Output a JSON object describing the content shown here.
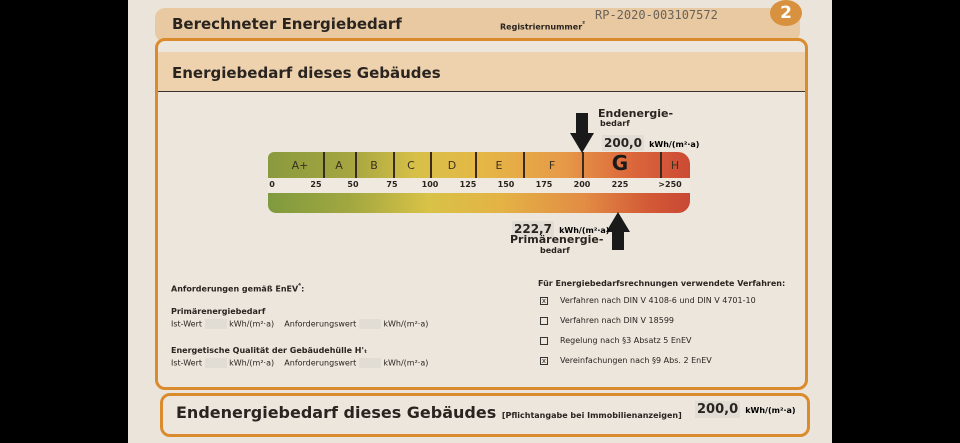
{
  "header": {
    "title": "Berechneter Energiebedarf",
    "registry_label": "Registriernummer",
    "registry_superscript": "²",
    "registry_number": "RP-2020-003107572",
    "page_number": "2"
  },
  "section": {
    "title": "Energiebedarf dieses Gebäudes"
  },
  "scale": {
    "classes": [
      "A+",
      "A",
      "B",
      "C",
      "D",
      "E",
      "F",
      "G",
      "H"
    ],
    "highlighted_class": "G",
    "ticks": [
      "0",
      "25",
      "50",
      "75",
      "100",
      "125",
      "150",
      "175",
      "200",
      "225",
      ">250"
    ]
  },
  "endenergie": {
    "label_line1": "Endenergie-",
    "label_line2": "bedarf",
    "value": "200,0",
    "unit": "kWh/(m²·a)"
  },
  "primaerenergie": {
    "label_line1": "Primärenergie-",
    "label_line2": "bedarf",
    "value": "222,7",
    "unit": "kWh/(m²·a)"
  },
  "requirements": {
    "heading": "Anforderungen gemäß EnEV",
    "heading_sup": "⁴",
    "primary_title": "Primärenergiebedarf",
    "envelope_title": "Energetische Qualität der Gebäudehülle H'ₜ",
    "ist_label": "Ist-Wert",
    "unit": "kWh/(m²·a)",
    "req_label": "Anforderungswert"
  },
  "methods": {
    "heading": "Für Energiebedarfsrechnungen verwendete Verfahren:",
    "items": [
      {
        "label": "Verfahren nach DIN V 4108-6 und DIN V 4701-10",
        "checked": true,
        "mark": "x"
      },
      {
        "label": "Verfahren nach DIN V 18599",
        "checked": false,
        "mark": ""
      },
      {
        "label": "Regelung nach §3 Absatz 5 EnEV",
        "checked": false,
        "mark": ""
      },
      {
        "label": "Vereinfachungen nach §9 Abs. 2 EnEV",
        "checked": true,
        "mark": "x"
      }
    ]
  },
  "footer": {
    "title": "Endenergiebedarf dieses Gebäudes",
    "note": "[Pflichtangabe bei Immobilienanzeigen]",
    "value": "200,0",
    "unit": "kWh/(m²·a)"
  },
  "colors": {
    "accent": "#d98b2e",
    "band": "#eed2ae"
  }
}
